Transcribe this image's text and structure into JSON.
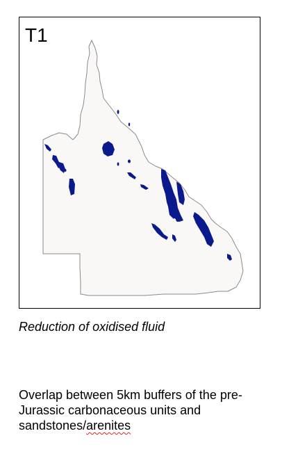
{
  "panel": {
    "label": "T1"
  },
  "map": {
    "land_fill": "#f9f8f7",
    "coast_stroke": "#8a8a8a",
    "feature_fill": "#0a1a8c"
  },
  "caption": "Reduction of oxidised fluid",
  "description": {
    "prefix": "Overlap between 5km buffers of the pre-Jurassic carbonaceous units and sandstones/",
    "flagged_word": "arenites"
  }
}
